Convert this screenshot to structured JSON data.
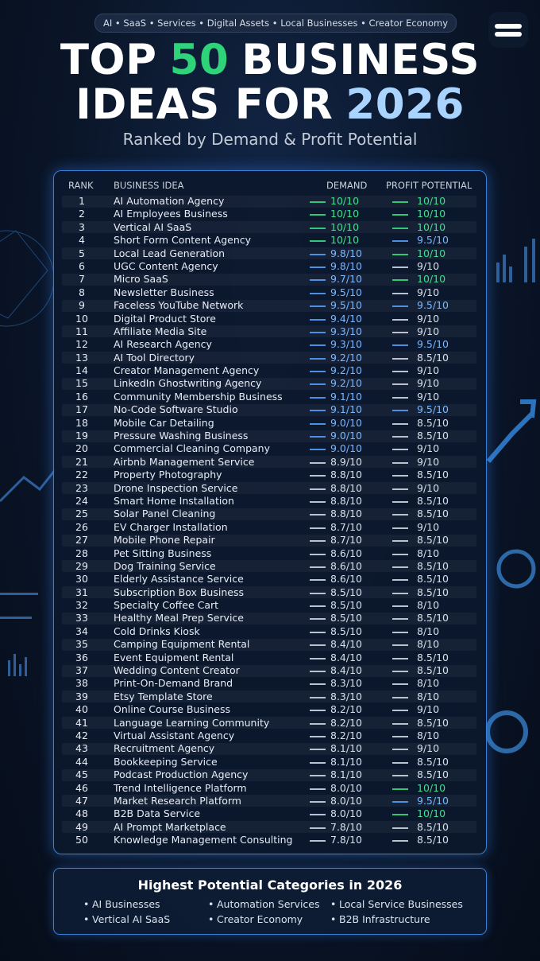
{
  "tags": "AI • SaaS • Services • Digital Assets • Local Businesses • Creator Economy",
  "title": {
    "line1": {
      "before": "TOP",
      "highlight": "50",
      "after": "BUSINESS"
    },
    "line2": {
      "before": "IDEAS FOR",
      "highlight": "2026"
    }
  },
  "subtitle": "Ranked by Demand & Profit Potential",
  "table": {
    "headers": [
      "RANK",
      "BUSINESS IDEA",
      "DEMAND",
      "PROFIT POTENTIAL"
    ],
    "rows": [
      [
        1,
        "AI Automation Agency",
        "10/10",
        "10/10"
      ],
      [
        2,
        "AI Employees Business",
        "10/10",
        "10/10"
      ],
      [
        3,
        "Vertical AI SaaS",
        "10/10",
        "10/10"
      ],
      [
        4,
        "Short Form Content Agency",
        "10/10",
        "9.5/10"
      ],
      [
        5,
        "Local Lead Generation",
        "9.8/10",
        "10/10"
      ],
      [
        6,
        "UGC Content Agency",
        "9.8/10",
        "9/10"
      ],
      [
        7,
        "Micro SaaS",
        "9.7/10",
        "10/10"
      ],
      [
        8,
        "Newsletter Business",
        "9.5/10",
        "9/10"
      ],
      [
        9,
        "Faceless YouTube Network",
        "9.5/10",
        "9.5/10"
      ],
      [
        10,
        "Digital Product Store",
        "9.4/10",
        "9/10"
      ],
      [
        11,
        "Affiliate Media Site",
        "9.3/10",
        "9/10"
      ],
      [
        12,
        "AI Research Agency",
        "9.3/10",
        "9.5/10"
      ],
      [
        13,
        "AI Tool Directory",
        "9.2/10",
        "8.5/10"
      ],
      [
        14,
        "Creator Management Agency",
        "9.2/10",
        "9/10"
      ],
      [
        15,
        "LinkedIn Ghostwriting Agency",
        "9.2/10",
        "9/10"
      ],
      [
        16,
        "Community Membership Business",
        "9.1/10",
        "9/10"
      ],
      [
        17,
        "No-Code Software Studio",
        "9.1/10",
        "9.5/10"
      ],
      [
        18,
        "Mobile Car Detailing",
        "9.0/10",
        "8.5/10"
      ],
      [
        19,
        "Pressure Washing Business",
        "9.0/10",
        "8.5/10"
      ],
      [
        20,
        "Commercial Cleaning Company",
        "9.0/10",
        "9/10"
      ],
      [
        21,
        "Airbnb Management Service",
        "8.9/10",
        "9/10"
      ],
      [
        22,
        "Property Photography",
        "8.8/10",
        "8.5/10"
      ],
      [
        23,
        "Drone Inspection Service",
        "8.8/10",
        "9/10"
      ],
      [
        24,
        "Smart Home Installation",
        "8.8/10",
        "8.5/10"
      ],
      [
        25,
        "Solar Panel Cleaning",
        "8.8/10",
        "8.5/10"
      ],
      [
        26,
        "EV Charger Installation",
        "8.7/10",
        "9/10"
      ],
      [
        27,
        "Mobile Phone Repair",
        "8.7/10",
        "8.5/10"
      ],
      [
        28,
        "Pet Sitting Business",
        "8.6/10",
        "8/10"
      ],
      [
        29,
        "Dog Training Service",
        "8.6/10",
        "8.5/10"
      ],
      [
        30,
        "Elderly Assistance Service",
        "8.6/10",
        "8.5/10"
      ],
      [
        31,
        "Subscription Box Business",
        "8.5/10",
        "8.5/10"
      ],
      [
        32,
        "Specialty Coffee Cart",
        "8.5/10",
        "8/10"
      ],
      [
        33,
        "Healthy Meal Prep Service",
        "8.5/10",
        "8.5/10"
      ],
      [
        34,
        "Cold Drinks Kiosk",
        "8.5/10",
        "8/10"
      ],
      [
        35,
        "Camping Equipment Rental",
        "8.4/10",
        "8/10"
      ],
      [
        36,
        "Event Equipment Rental",
        "8.4/10",
        "8.5/10"
      ],
      [
        37,
        "Wedding Content Creator",
        "8.4/10",
        "8.5/10"
      ],
      [
        38,
        "Print-On-Demand Brand",
        "8.3/10",
        "8/10"
      ],
      [
        39,
        "Etsy Template Store",
        "8.3/10",
        "8/10"
      ],
      [
        40,
        "Online Course Business",
        "8.2/10",
        "9/10"
      ],
      [
        41,
        "Language Learning Community",
        "8.2/10",
        "8.5/10"
      ],
      [
        42,
        "Virtual Assistant Agency",
        "8.2/10",
        "8/10"
      ],
      [
        43,
        "Recruitment Agency",
        "8.1/10",
        "9/10"
      ],
      [
        44,
        "Bookkeeping Service",
        "8.1/10",
        "8.5/10"
      ],
      [
        45,
        "Podcast Production Agency",
        "8.1/10",
        "8.5/10"
      ],
      [
        46,
        "Trend Intelligence Platform",
        "8.0/10",
        "10/10"
      ],
      [
        47,
        "Market Research Platform",
        "8.0/10",
        "9.5/10"
      ],
      [
        48,
        "B2B Data Service",
        "8.0/10",
        "10/10"
      ],
      [
        49,
        "AI Prompt Marketplace",
        "7.8/10",
        "8.5/10"
      ],
      [
        50,
        "Knowledge Management Consulting",
        "7.8/10",
        "8.5/10"
      ]
    ]
  },
  "footer": {
    "title": "Highest Potential Categories in 2026",
    "items": [
      "AI Businesses",
      "Automation Services",
      "Local Service Businesses",
      "Vertical AI SaaS",
      "Creator Economy",
      "B2B Infrastructure"
    ]
  }
}
